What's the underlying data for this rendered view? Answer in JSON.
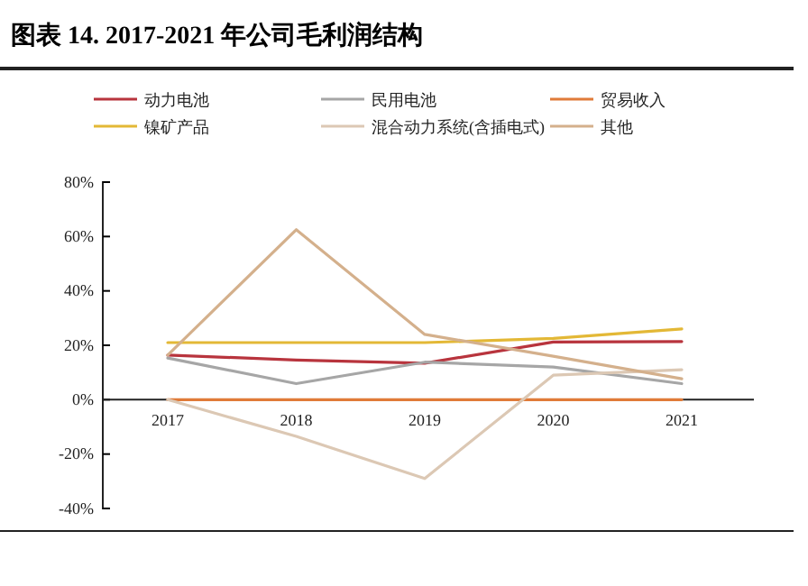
{
  "chart_data": {
    "type": "line",
    "title": "图表 14. 2017-2021 年公司毛利润结构",
    "categories": [
      "2017",
      "2018",
      "2019",
      "2020",
      "2021"
    ],
    "series": [
      {
        "name": "动力电池",
        "color": "#b8343d",
        "values": [
          16.4,
          14.6,
          13.4,
          21.2,
          21.4
        ]
      },
      {
        "name": "民用电池",
        "color": "#a6a6a6",
        "values": [
          15.3,
          5.9,
          13.8,
          12,
          5.9
        ]
      },
      {
        "name": "贸易收入",
        "color": "#e07b39",
        "values": [
          0,
          0,
          0,
          0,
          0
        ]
      },
      {
        "name": "镍矿产品",
        "color": "#e3b836",
        "values": [
          21,
          21,
          21,
          22.5,
          26
        ]
      },
      {
        "name": "混合动力系统(含插电式)",
        "color": "#dcc8b4",
        "values": [
          0,
          -13.5,
          -29,
          9,
          11
        ]
      },
      {
        "name": "其他",
        "color": "#d4b08c",
        "values": [
          16.4,
          62.5,
          24,
          16,
          7.7
        ]
      }
    ],
    "ylim": [
      -40,
      80
    ],
    "yticks": [
      {
        "value": -40,
        "label": "-40%"
      },
      {
        "value": -20,
        "label": "-20%"
      },
      {
        "value": 0,
        "label": "0%"
      },
      {
        "value": 20,
        "label": "20%"
      },
      {
        "value": 40,
        "label": "40%"
      },
      {
        "value": 60,
        "label": "60%"
      },
      {
        "value": 80,
        "label": "80%"
      }
    ],
    "legend": "top",
    "grid": false
  }
}
